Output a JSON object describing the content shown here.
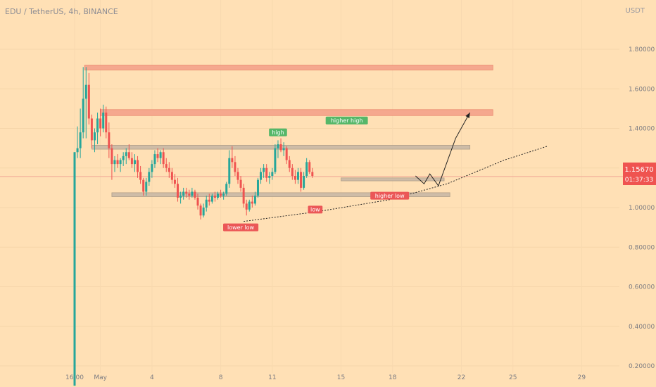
{
  "header": {
    "symbol": "EDU / TetherUS, 4h, BINANCE",
    "unit": "USDT"
  },
  "price_badge": {
    "price": "1.15670",
    "countdown": "01:37:33"
  },
  "colors": {
    "background": "#FFE0B5",
    "bull": "#26A69A",
    "bear": "#EF5350",
    "resistance": "#F5A38A",
    "range": "#C9B9A6",
    "current_price_line": "#F1A796",
    "green_label": "#56B769",
    "red_label": "#EB5757"
  },
  "chart_data": {
    "type": "candlestick",
    "title": "EDU / TetherUS, 4h, BINANCE",
    "ylim": [
      0.08,
      1.96
    ],
    "y_ticks": [
      {
        "value": 1.8,
        "label": "1.80000"
      },
      {
        "value": 1.6,
        "label": "1.60000"
      },
      {
        "value": 1.4,
        "label": "1.40000"
      },
      {
        "value": 1.2,
        "label": "1.20000"
      },
      {
        "value": 1.0,
        "label": "1.00000"
      },
      {
        "value": 0.8,
        "label": "0.80000"
      },
      {
        "value": 0.6,
        "label": "0.60000"
      },
      {
        "value": 0.4,
        "label": "0.40000"
      },
      {
        "value": 0.2,
        "label": "0.20000"
      }
    ],
    "x_start": "2023-04-28 16:00",
    "x_ticks": [
      {
        "bar": 0,
        "label": "16:00"
      },
      {
        "bar": 9,
        "label": "May"
      },
      {
        "bar": 27,
        "label": "4"
      },
      {
        "bar": 51,
        "label": "8"
      },
      {
        "bar": 69,
        "label": "11"
      },
      {
        "bar": 93,
        "label": "15"
      },
      {
        "bar": 111,
        "label": "18"
      },
      {
        "bar": 135,
        "label": "22"
      },
      {
        "bar": 153,
        "label": "25"
      },
      {
        "bar": 177,
        "label": "29"
      }
    ],
    "candles": [
      [
        0.1,
        1.28,
        0.1,
        1.28
      ],
      [
        1.28,
        1.41,
        1.25,
        1.3
      ],
      [
        1.3,
        1.5,
        1.25,
        1.38
      ],
      [
        1.38,
        1.71,
        1.35,
        1.55
      ],
      [
        1.55,
        1.71,
        1.35,
        1.62
      ],
      [
        1.62,
        1.68,
        1.42,
        1.45
      ],
      [
        1.45,
        1.47,
        1.3,
        1.34
      ],
      [
        1.34,
        1.4,
        1.28,
        1.38
      ],
      [
        1.38,
        1.48,
        1.32,
        1.45
      ],
      [
        1.45,
        1.5,
        1.36,
        1.4
      ],
      [
        1.4,
        1.52,
        1.38,
        1.48
      ],
      [
        1.48,
        1.51,
        1.35,
        1.38
      ],
      [
        1.38,
        1.43,
        1.25,
        1.3
      ],
      [
        1.3,
        1.32,
        1.14,
        1.22
      ],
      [
        1.22,
        1.26,
        1.18,
        1.24
      ],
      [
        1.24,
        1.27,
        1.2,
        1.22
      ],
      [
        1.22,
        1.25,
        1.18,
        1.24
      ],
      [
        1.24,
        1.28,
        1.21,
        1.26
      ],
      [
        1.26,
        1.3,
        1.22,
        1.28
      ],
      [
        1.28,
        1.32,
        1.24,
        1.25
      ],
      [
        1.25,
        1.28,
        1.2,
        1.22
      ],
      [
        1.22,
        1.27,
        1.18,
        1.24
      ],
      [
        1.24,
        1.26,
        1.15,
        1.18
      ],
      [
        1.18,
        1.21,
        1.12,
        1.14
      ],
      [
        1.14,
        1.15,
        1.06,
        1.08
      ],
      [
        1.08,
        1.15,
        1.06,
        1.13
      ],
      [
        1.13,
        1.2,
        1.11,
        1.18
      ],
      [
        1.18,
        1.24,
        1.15,
        1.22
      ],
      [
        1.22,
        1.29,
        1.2,
        1.27
      ],
      [
        1.27,
        1.3,
        1.23,
        1.25
      ],
      [
        1.25,
        1.29,
        1.22,
        1.28
      ],
      [
        1.28,
        1.3,
        1.2,
        1.22
      ],
      [
        1.22,
        1.25,
        1.18,
        1.2
      ],
      [
        1.2,
        1.23,
        1.15,
        1.18
      ],
      [
        1.18,
        1.2,
        1.12,
        1.14
      ],
      [
        1.14,
        1.17,
        1.1,
        1.12
      ],
      [
        1.12,
        1.15,
        1.03,
        1.05
      ],
      [
        1.05,
        1.08,
        1.02,
        1.06
      ],
      [
        1.06,
        1.1,
        1.04,
        1.08
      ],
      [
        1.08,
        1.1,
        1.05,
        1.07
      ],
      [
        1.07,
        1.09,
        1.04,
        1.06
      ],
      [
        1.06,
        1.1,
        1.05,
        1.08
      ],
      [
        1.08,
        1.09,
        1.04,
        1.05
      ],
      [
        1.05,
        1.07,
        0.99,
        1.01
      ],
      [
        1.01,
        1.02,
        0.94,
        0.96
      ],
      [
        0.96,
        1.02,
        0.95,
        1.0
      ],
      [
        1.0,
        1.06,
        0.98,
        1.04
      ],
      [
        1.04,
        1.07,
        1.01,
        1.03
      ],
      [
        1.03,
        1.07,
        1.02,
        1.06
      ],
      [
        1.06,
        1.08,
        1.03,
        1.05
      ],
      [
        1.05,
        1.08,
        1.04,
        1.07
      ],
      [
        1.07,
        1.09,
        1.05,
        1.06
      ],
      [
        1.06,
        1.08,
        1.04,
        1.07
      ],
      [
        1.07,
        1.13,
        1.06,
        1.12
      ],
      [
        1.12,
        1.29,
        1.1,
        1.25
      ],
      [
        1.25,
        1.31,
        1.2,
        1.23
      ],
      [
        1.23,
        1.26,
        1.16,
        1.18
      ],
      [
        1.18,
        1.2,
        1.12,
        1.14
      ],
      [
        1.14,
        1.16,
        1.08,
        1.1
      ],
      [
        1.1,
        1.12,
        1.0,
        1.02
      ],
      [
        1.02,
        1.04,
        0.96,
        0.99
      ],
      [
        0.99,
        1.04,
        0.98,
        1.03
      ],
      [
        1.03,
        1.06,
        1.0,
        1.02
      ],
      [
        1.02,
        1.08,
        1.01,
        1.06
      ],
      [
        1.06,
        1.15,
        1.05,
        1.14
      ],
      [
        1.14,
        1.2,
        1.12,
        1.18
      ],
      [
        1.18,
        1.22,
        1.15,
        1.2
      ],
      [
        1.2,
        1.22,
        1.13,
        1.15
      ],
      [
        1.15,
        1.18,
        1.12,
        1.16
      ],
      [
        1.16,
        1.2,
        1.14,
        1.18
      ],
      [
        1.18,
        1.32,
        1.17,
        1.3
      ],
      [
        1.3,
        1.34,
        1.25,
        1.32
      ],
      [
        1.32,
        1.35,
        1.28,
        1.29
      ],
      [
        1.29,
        1.33,
        1.26,
        1.3
      ],
      [
        1.3,
        1.31,
        1.22,
        1.24
      ],
      [
        1.24,
        1.26,
        1.18,
        1.2
      ],
      [
        1.2,
        1.22,
        1.14,
        1.16
      ],
      [
        1.16,
        1.19,
        1.12,
        1.14
      ],
      [
        1.14,
        1.2,
        1.12,
        1.18
      ],
      [
        1.18,
        1.2,
        1.08,
        1.1
      ],
      [
        1.1,
        1.18,
        1.09,
        1.16
      ],
      [
        1.16,
        1.25,
        1.15,
        1.23
      ],
      [
        1.23,
        1.24,
        1.17,
        1.18
      ],
      [
        1.18,
        1.2,
        1.15,
        1.16
      ]
    ],
    "levels": [
      {
        "name": "resistance-top",
        "type": "resistance",
        "top": 1.72,
        "bottom": 1.695,
        "from_bar": 3.5,
        "to_bar": 146
      },
      {
        "name": "resistance-mid",
        "type": "resistance",
        "top": 1.495,
        "bottom": 1.465,
        "from_bar": 9,
        "to_bar": 146
      },
      {
        "name": "range-top",
        "type": "range",
        "top": 1.315,
        "bottom": 1.295,
        "from_bar": 6,
        "to_bar": 138
      },
      {
        "name": "range-mid",
        "type": "range",
        "top": 1.15,
        "bottom": 1.135,
        "from_bar": 93,
        "to_bar": 129
      },
      {
        "name": "range-bottom",
        "type": "range",
        "top": 1.075,
        "bottom": 1.055,
        "from_bar": 13,
        "to_bar": 131
      }
    ],
    "current_price": 1.1567,
    "trendline_points": [
      [
        59,
        0.93
      ],
      [
        85,
        0.98
      ],
      [
        110,
        1.04
      ],
      [
        130,
        1.12
      ],
      [
        150,
        1.24
      ],
      [
        165,
        1.31
      ]
    ],
    "projection_points": [
      [
        119,
        1.16
      ],
      [
        122,
        1.12
      ],
      [
        124,
        1.17
      ],
      [
        127,
        1.11
      ],
      [
        133,
        1.35
      ],
      [
        138,
        1.48
      ]
    ],
    "annotations": [
      {
        "text": "high",
        "color": "green",
        "bar": 71,
        "price": 1.38
      },
      {
        "text": "higher high",
        "color": "green",
        "bar": 95,
        "price": 1.44
      },
      {
        "text": "lower low",
        "color": "red",
        "bar": 58,
        "price": 0.9
      },
      {
        "text": "low",
        "color": "red",
        "bar": 84,
        "price": 0.99
      },
      {
        "text": "higher low",
        "color": "red",
        "bar": 110,
        "price": 1.06
      }
    ]
  }
}
